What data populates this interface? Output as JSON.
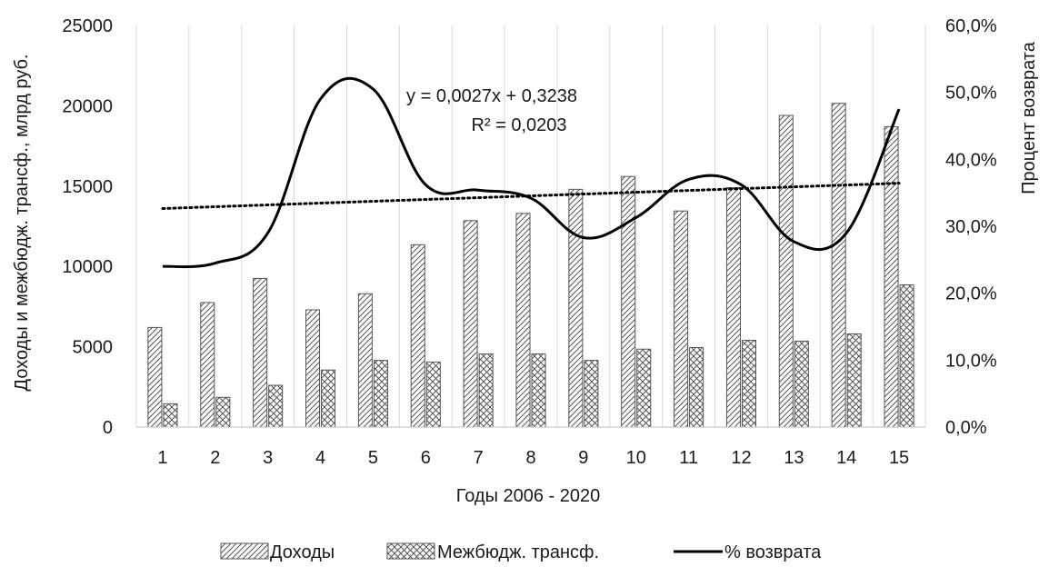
{
  "chart_data": {
    "type": "bar",
    "title": "",
    "xlabel": "Годы 2006 - 2020",
    "ylabel": "Доходы и межбюдж. трансф., млрд руб.",
    "y2label": "Процент возврата",
    "categories": [
      "1",
      "2",
      "3",
      "4",
      "5",
      "6",
      "7",
      "8",
      "9",
      "10",
      "11",
      "12",
      "13",
      "14",
      "15"
    ],
    "ylim": [
      0,
      25000
    ],
    "y_ticks": [
      "0",
      "5000",
      "10000",
      "15000",
      "20000",
      "25000"
    ],
    "y2lim": [
      0,
      0.6
    ],
    "y2_ticks": [
      "0,0%",
      "10,0%",
      "20,0%",
      "30,0%",
      "40,0%",
      "50,0%",
      "60,0%"
    ],
    "grid": "vertical",
    "legend_position": "bottom",
    "series": [
      {
        "name": "Доходы",
        "kind": "bar",
        "pattern": "diagonal-hatch",
        "values": [
          6200,
          7750,
          9250,
          7300,
          8300,
          11350,
          12850,
          13300,
          14800,
          15600,
          13450,
          14900,
          19400,
          20150,
          18700
        ]
      },
      {
        "name": "Межбюдж. трансф.",
        "kind": "bar",
        "pattern": "cross-hatch",
        "values": [
          1450,
          1850,
          2600,
          3550,
          4150,
          4050,
          4550,
          4550,
          4150,
          4850,
          4950,
          5400,
          5350,
          5800,
          8850
        ]
      },
      {
        "name": "% возврата",
        "kind": "line",
        "axis": "right",
        "color": "#000000",
        "values": [
          0.24,
          0.245,
          0.29,
          0.49,
          0.505,
          0.362,
          0.354,
          0.342,
          0.283,
          0.313,
          0.37,
          0.362,
          0.277,
          0.29,
          0.475
        ]
      }
    ],
    "trendline": {
      "series": "% возврата",
      "slope": 0.0027,
      "intercept": 0.3238,
      "style": "dotted",
      "equation": "y = 0,0027x + 0,3238",
      "r2": "R² = 0,0203"
    }
  }
}
